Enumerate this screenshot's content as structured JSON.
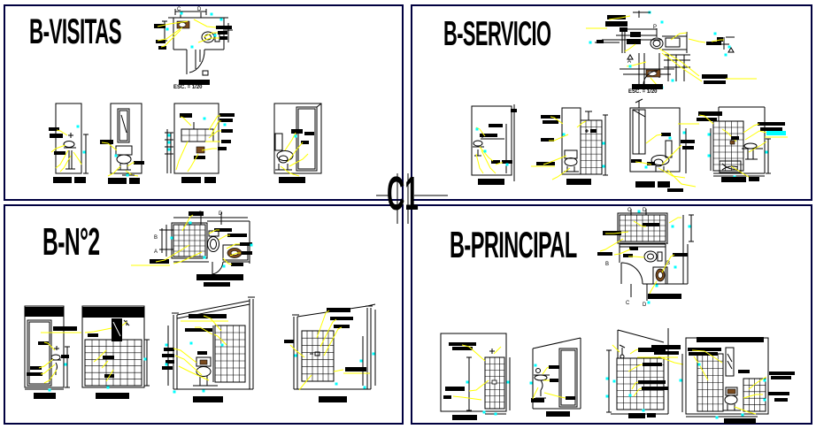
{
  "sheet": {
    "center_label": "C1",
    "panels": [
      {
        "id": "visitas",
        "title": "B-VISITAS",
        "plan_scale": "ESC. = 1/20"
      },
      {
        "id": "servicio",
        "title": "B-SERVICIO",
        "plan_scale": "ESC. = 1/20"
      },
      {
        "id": "n2",
        "title": "B-N°2",
        "plan_scale": ""
      },
      {
        "id": "principal",
        "title": "B-PRINCIPAL",
        "plan_scale": ""
      }
    ],
    "markers": {
      "visitas_plan": [
        "C",
        "D"
      ],
      "servicio_plan": [
        "P",
        "A"
      ],
      "n2_plan": [
        "C",
        "D",
        "B",
        "A"
      ],
      "principal_plan": [
        "C",
        "D",
        "B",
        "B",
        "C",
        "D"
      ]
    },
    "colors": {
      "panel_border": "#000040",
      "linework": "#000000",
      "leader": "#ffff00",
      "highlight": "#00ffff",
      "fixture_fill": "#7a4a1e",
      "background": "#ffffff"
    }
  }
}
